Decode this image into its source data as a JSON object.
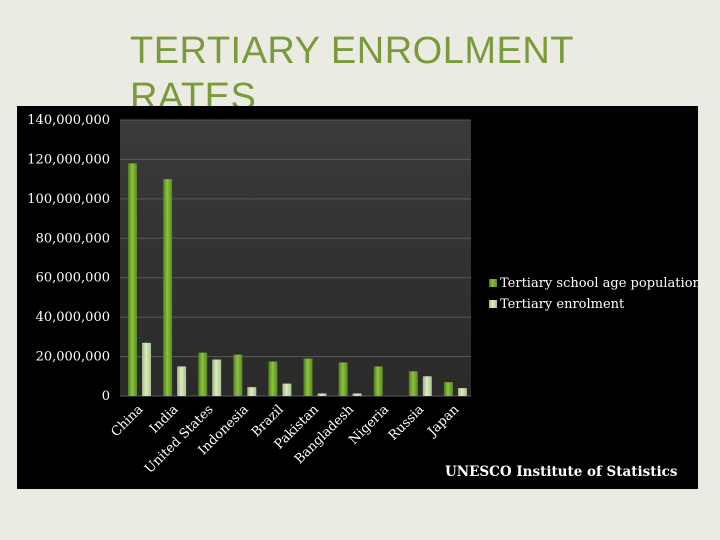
{
  "slide": {
    "title": "TERTIARY ENROLMENT RATES"
  },
  "chart_data": {
    "type": "bar",
    "title": "",
    "xlabel": "",
    "ylabel": "",
    "ylim": [
      0,
      140000000
    ],
    "y_ticks": [
      0,
      20000000,
      40000000,
      60000000,
      80000000,
      100000000,
      120000000,
      140000000
    ],
    "y_tick_labels": [
      "0",
      "20,000,000",
      "40,000,000",
      "60,000,000",
      "80,000,000",
      "100,000,000",
      "120,000,000",
      "140,000,000"
    ],
    "categories": [
      "China",
      "India",
      "United States",
      "Indonesia",
      "Brazil",
      "Pakistan",
      "Bangladesh",
      "Nigeria",
      "Russia",
      "Japan"
    ],
    "series": [
      {
        "name": "Tertiary school age population",
        "color": "#7fb23a",
        "values": [
          118000000,
          110000000,
          22000000,
          21000000,
          17500000,
          19000000,
          17000000,
          15000000,
          12500000,
          7000000
        ]
      },
      {
        "name": "Tertiary enrolment",
        "color": "#c6dca0",
        "values": [
          27000000,
          15000000,
          18500000,
          4500000,
          6300000,
          1300000,
          1300000,
          0,
          10000000,
          4000000
        ]
      }
    ],
    "legend_position": "right",
    "grid": true,
    "source": "UNESCO Institute of Statistics"
  }
}
